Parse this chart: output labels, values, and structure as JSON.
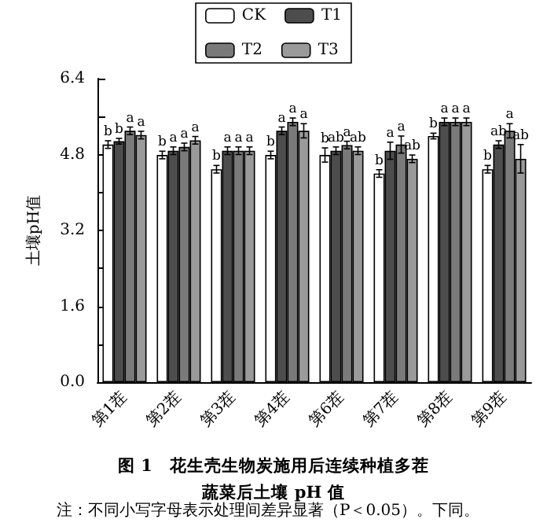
{
  "chart_data": {
    "type": "bar",
    "title": "图 1　花生壳生物炭施用后连续种植多茬蔬菜后土壤 pH 值",
    "ylabel": "土壤pH值",
    "annotations": [
      "注：不同小写字母表示处理间差异显著（P＜0.05）。下同。"
    ],
    "categories": [
      "第1茬",
      "第2茬",
      "第3茬",
      "第4茬",
      "第6茬",
      "第7茬",
      "第8茬",
      "第9茬"
    ],
    "series": [
      {
        "name": "CK",
        "color": "#ffffff",
        "values": [
          5.01,
          4.79,
          4.49,
          4.79,
          4.79,
          4.4,
          5.19,
          4.49
        ],
        "errors": [
          0.08,
          0.08,
          0.08,
          0.08,
          0.15,
          0.08,
          0.06,
          0.08
        ],
        "value_labels": [
          "b",
          "b",
          "b",
          "b",
          "b",
          "b",
          "b",
          "b"
        ]
      },
      {
        "name": "T1",
        "color": "#4d4d4d",
        "values": [
          5.08,
          4.88,
          4.88,
          5.3,
          4.88,
          4.88,
          5.49,
          5.01
        ],
        "errors": [
          0.06,
          0.08,
          0.08,
          0.08,
          0.08,
          0.18,
          0.08,
          0.08
        ],
        "value_labels": [
          "b",
          "a",
          "a",
          "a",
          "ab",
          "a",
          "a",
          "ab"
        ]
      },
      {
        "name": "T2",
        "color": "#7a7a7a",
        "values": [
          5.3,
          4.96,
          4.88,
          5.49,
          5.0,
          5.01,
          5.49,
          5.3
        ],
        "errors": [
          0.08,
          0.08,
          0.08,
          0.08,
          0.08,
          0.18,
          0.08,
          0.15
        ],
        "value_labels": [
          "a",
          "a",
          "a",
          "a",
          "a",
          "a",
          "a",
          "a"
        ]
      },
      {
        "name": "T3",
        "color": "#9a9a9a",
        "values": [
          5.21,
          5.1,
          4.88,
          5.3,
          4.88,
          4.71,
          5.49,
          4.71
        ],
        "errors": [
          0.08,
          0.08,
          0.08,
          0.15,
          0.08,
          0.08,
          0.08,
          0.3
        ],
        "value_labels": [
          "a",
          "a",
          "a",
          "a",
          "ab",
          "ab",
          "a",
          "ab"
        ]
      }
    ],
    "ylim": [
      0,
      6.4
    ],
    "yticks": [
      {
        "value": 0,
        "label": "0.0"
      },
      {
        "value": 0.8,
        "label": null
      },
      {
        "value": 1.6,
        "label": "1.6"
      },
      {
        "value": 2.4,
        "label": null
      },
      {
        "value": 3.2,
        "label": "3.2"
      },
      {
        "value": 4,
        "label": null
      },
      {
        "value": 4.8,
        "label": "4.8"
      },
      {
        "value": 5.6,
        "label": null
      },
      {
        "value": 6.4,
        "label": "6.4"
      }
    ],
    "grid": false,
    "legend": "top"
  }
}
